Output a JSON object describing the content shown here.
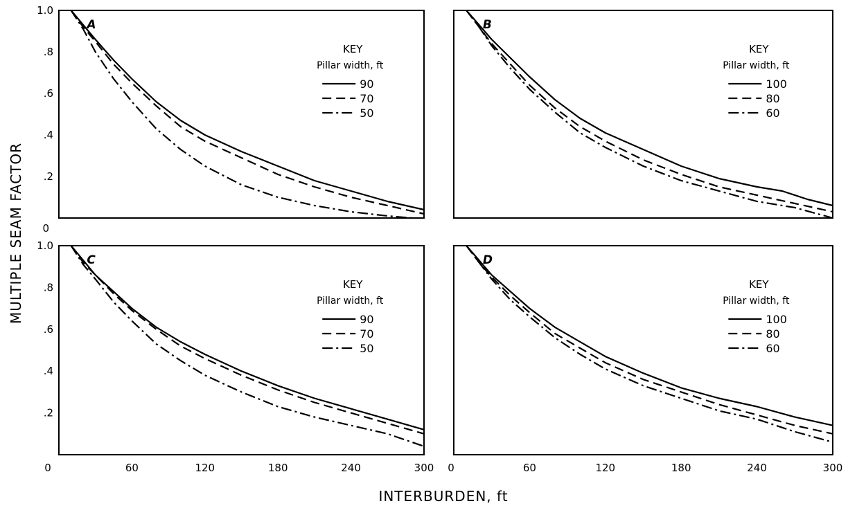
{
  "figure": {
    "ylabel": "MULTIPLE SEAM FACTOR",
    "xlabel": "INTERBURDEN, ft"
  },
  "chart_data": [
    {
      "type": "line",
      "panel": "A",
      "key_title": "KEY",
      "key_subtitle": "Pillar width, ft",
      "xlim": [
        0,
        300
      ],
      "ylim": [
        0,
        1.0
      ],
      "x_ticks": [
        "0",
        "60",
        "120",
        "180",
        "240",
        "300"
      ],
      "y_ticks": [
        "0",
        ".2",
        ".4",
        ".6",
        ".8",
        "1.0"
      ],
      "series": [
        {
          "name": "90",
          "style": "solid",
          "x": [
            10,
            20,
            30,
            45,
            60,
            80,
            100,
            120,
            150,
            180,
            210,
            240,
            270,
            300
          ],
          "y": [
            1.0,
            0.93,
            0.86,
            0.76,
            0.67,
            0.56,
            0.47,
            0.4,
            0.32,
            0.25,
            0.18,
            0.13,
            0.08,
            0.04
          ]
        },
        {
          "name": "70",
          "style": "dashed",
          "x": [
            10,
            20,
            30,
            45,
            60,
            80,
            100,
            120,
            150,
            180,
            210,
            240,
            270,
            300
          ],
          "y": [
            1.0,
            0.92,
            0.85,
            0.74,
            0.65,
            0.54,
            0.44,
            0.37,
            0.29,
            0.21,
            0.15,
            0.1,
            0.06,
            0.02
          ]
        },
        {
          "name": "50",
          "style": "dashdot",
          "x": [
            10,
            20,
            30,
            45,
            60,
            80,
            100,
            120,
            150,
            180,
            210,
            240,
            270,
            290
          ],
          "y": [
            1.0,
            0.91,
            0.8,
            0.67,
            0.56,
            0.43,
            0.33,
            0.25,
            0.16,
            0.1,
            0.06,
            0.03,
            0.01,
            0.0
          ]
        }
      ]
    },
    {
      "type": "line",
      "panel": "B",
      "key_title": "KEY",
      "key_subtitle": "Pillar width, ft",
      "xlim": [
        0,
        300
      ],
      "ylim": [
        0,
        1.0
      ],
      "x_ticks": [
        "0",
        "60",
        "120",
        "180",
        "240",
        "300"
      ],
      "y_ticks": [
        "0",
        ".2",
        ".4",
        ".6",
        ".8",
        "1.0"
      ],
      "series": [
        {
          "name": "100",
          "style": "solid",
          "x": [
            10,
            20,
            30,
            45,
            60,
            80,
            100,
            120,
            150,
            180,
            210,
            240,
            260,
            280,
            300
          ],
          "y": [
            1.0,
            0.93,
            0.86,
            0.77,
            0.68,
            0.57,
            0.48,
            0.41,
            0.33,
            0.25,
            0.19,
            0.15,
            0.13,
            0.09,
            0.06
          ]
        },
        {
          "name": "80",
          "style": "dashed",
          "x": [
            10,
            20,
            30,
            45,
            60,
            80,
            100,
            120,
            150,
            180,
            210,
            240,
            270,
            300
          ],
          "y": [
            1.0,
            0.92,
            0.84,
            0.74,
            0.64,
            0.53,
            0.44,
            0.37,
            0.28,
            0.21,
            0.15,
            0.11,
            0.07,
            0.03
          ]
        },
        {
          "name": "60",
          "style": "dashdot",
          "x": [
            10,
            20,
            30,
            45,
            60,
            80,
            100,
            120,
            150,
            180,
            210,
            240,
            270,
            300
          ],
          "y": [
            1.0,
            0.92,
            0.83,
            0.72,
            0.62,
            0.51,
            0.41,
            0.34,
            0.25,
            0.18,
            0.13,
            0.08,
            0.05,
            0.0
          ]
        }
      ]
    },
    {
      "type": "line",
      "panel": "C",
      "key_title": "KEY",
      "key_subtitle": "Pillar width, ft",
      "xlim": [
        0,
        300
      ],
      "ylim": [
        0,
        1.0
      ],
      "x_ticks": [
        "0",
        "60",
        "120",
        "180",
        "240",
        "300"
      ],
      "y_ticks": [
        "0",
        ".2",
        ".4",
        ".6",
        ".8",
        "1.0"
      ],
      "series": [
        {
          "name": "90",
          "style": "solid",
          "x": [
            10,
            20,
            30,
            45,
            60,
            80,
            100,
            120,
            150,
            180,
            210,
            240,
            270,
            300
          ],
          "y": [
            1.0,
            0.93,
            0.86,
            0.78,
            0.7,
            0.61,
            0.54,
            0.48,
            0.4,
            0.33,
            0.27,
            0.22,
            0.17,
            0.12
          ]
        },
        {
          "name": "70",
          "style": "dashed",
          "x": [
            10,
            20,
            30,
            45,
            60,
            80,
            100,
            120,
            150,
            180,
            210,
            240,
            270,
            300
          ],
          "y": [
            1.0,
            0.92,
            0.86,
            0.77,
            0.69,
            0.6,
            0.52,
            0.46,
            0.38,
            0.31,
            0.25,
            0.2,
            0.15,
            0.1
          ]
        },
        {
          "name": "50",
          "style": "dashdot",
          "x": [
            10,
            20,
            30,
            45,
            60,
            80,
            100,
            120,
            150,
            180,
            210,
            240,
            270,
            300
          ],
          "y": [
            1.0,
            0.91,
            0.84,
            0.73,
            0.64,
            0.53,
            0.45,
            0.38,
            0.3,
            0.23,
            0.18,
            0.14,
            0.1,
            0.04
          ]
        }
      ]
    },
    {
      "type": "line",
      "panel": "D",
      "key_title": "KEY",
      "key_subtitle": "Pillar width, ft",
      "xlim": [
        0,
        300
      ],
      "ylim": [
        0,
        1.0
      ],
      "x_ticks": [
        "0",
        "60",
        "120",
        "180",
        "240",
        "300"
      ],
      "y_ticks": [
        "0",
        ".2",
        ".4",
        ".6",
        ".8",
        "1.0"
      ],
      "series": [
        {
          "name": "100",
          "style": "solid",
          "x": [
            10,
            20,
            30,
            45,
            60,
            80,
            100,
            120,
            150,
            180,
            210,
            240,
            270,
            300
          ],
          "y": [
            1.0,
            0.93,
            0.86,
            0.78,
            0.7,
            0.61,
            0.54,
            0.47,
            0.39,
            0.32,
            0.27,
            0.23,
            0.18,
            0.14
          ]
        },
        {
          "name": "80",
          "style": "dashed",
          "x": [
            10,
            20,
            30,
            45,
            60,
            80,
            100,
            120,
            150,
            180,
            210,
            240,
            270,
            300
          ],
          "y": [
            1.0,
            0.92,
            0.85,
            0.76,
            0.68,
            0.58,
            0.51,
            0.44,
            0.36,
            0.3,
            0.24,
            0.19,
            0.14,
            0.1
          ]
        },
        {
          "name": "60",
          "style": "dashdot",
          "x": [
            10,
            20,
            30,
            45,
            60,
            80,
            100,
            120,
            150,
            180,
            210,
            240,
            270,
            300
          ],
          "y": [
            1.0,
            0.92,
            0.84,
            0.74,
            0.66,
            0.56,
            0.48,
            0.41,
            0.33,
            0.27,
            0.21,
            0.17,
            0.11,
            0.06
          ]
        }
      ]
    }
  ]
}
